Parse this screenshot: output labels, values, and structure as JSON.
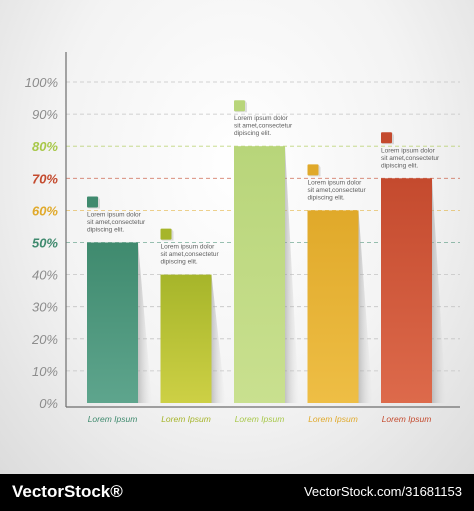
{
  "chart_data": {
    "type": "bar",
    "categories": [
      "Lorem Ipsum",
      "Lorem Ipsum",
      "Lorem Ipsum",
      "Lorem Ipsum",
      "Lorem Ipsum"
    ],
    "values": [
      50,
      40,
      80,
      60,
      70
    ],
    "ylim": [
      0,
      100
    ],
    "y_ticks": [
      "0%",
      "10%",
      "20%",
      "30%",
      "40%",
      "50%",
      "60%",
      "70%",
      "80%",
      "90%",
      "100%"
    ],
    "grid": true,
    "annotations": [
      "Lorem ipsum dolor sit amet,consectetur adipiscing elit.",
      "Lorem ipsum dolor sit amet,consectetur adipiscing elit.",
      "Lorem ipsum dolor sit amet,consectetur adipiscing elit.",
      "Lorem ipsum dolor sit amet,consectetur adipiscing elit.",
      "Lorem ipsum dolor sit amet,consectetur adipiscing elit."
    ],
    "colors": {
      "bars_top": [
        "#3f8a6e",
        "#a6b52a",
        "#b8d57a",
        "#e0a92a",
        "#c44a2e"
      ],
      "bars_bottom": [
        "#5ea58d",
        "#cdd045",
        "#c9e08f",
        "#eebe45",
        "#dd6a4b"
      ],
      "tick_highlight": {
        "50%": "#3f8a6e",
        "60%": "#e0a92a",
        "70%": "#c44a2e",
        "80%": "#a8c84a"
      },
      "tick_default": "#8c8c8c",
      "category_labels": [
        "#3f8a6e",
        "#a6b52a",
        "#a8c84a",
        "#e0a92a",
        "#c44a2e"
      ]
    }
  },
  "footer": {
    "brand": "VectorStock®",
    "id_text": "VectorStock.com/31681153"
  }
}
